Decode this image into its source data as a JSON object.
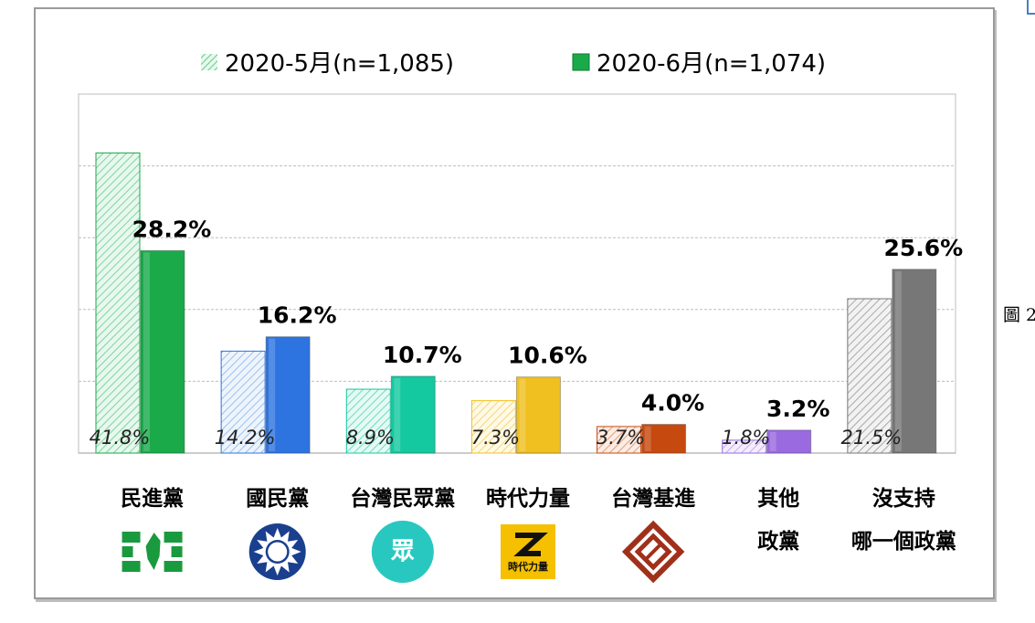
{
  "side_label": "圖 2",
  "colors": {
    "dpp": "#1aaa4a",
    "kmt": "#2e74e0",
    "tpp": "#14c8a0",
    "npp": "#f0c020",
    "tsp": "#c64a10",
    "other": "#9a6ae0",
    "none": "#777777"
  },
  "chart_data": {
    "type": "bar",
    "title": "",
    "xlabel": "",
    "ylabel": "",
    "ylim": [
      0,
      50
    ],
    "grid": true,
    "legend": "top",
    "series": [
      {
        "name": "2020-5月(n=1,085)",
        "style": "hatched",
        "values": [
          41.8,
          14.2,
          8.9,
          7.3,
          3.7,
          1.8,
          21.5
        ],
        "labels": [
          "41.8%",
          "14.2%",
          "8.9%",
          "7.3%",
          "3.7%",
          "1.8%",
          "21.5%"
        ]
      },
      {
        "name": "2020-6月(n=1,074)",
        "style": "solid",
        "values": [
          28.2,
          16.2,
          10.7,
          10.6,
          4.0,
          3.2,
          25.6
        ],
        "labels": [
          "28.2%",
          "16.2%",
          "10.7%",
          "10.6%",
          "4.0%",
          "3.2%",
          "25.6%"
        ]
      }
    ],
    "categories": [
      {
        "lines": [
          "民進黨"
        ],
        "color_key": "dpp",
        "logo": "dpp-logo"
      },
      {
        "lines": [
          "國民黨"
        ],
        "color_key": "kmt",
        "logo": "kmt-logo"
      },
      {
        "lines": [
          "台灣民眾黨"
        ],
        "color_key": "tpp",
        "logo": "tpp-logo",
        "logo_text": "眾"
      },
      {
        "lines": [
          "時代力量"
        ],
        "color_key": "npp",
        "logo": "npp-logo",
        "logo_text": "時代力量"
      },
      {
        "lines": [
          "台灣基進"
        ],
        "color_key": "tsp",
        "logo": "tsp-logo"
      },
      {
        "lines": [
          "其他",
          "政黨"
        ],
        "color_key": "other",
        "logo": ""
      },
      {
        "lines": [
          "沒支持",
          "哪一個政黨"
        ],
        "color_key": "none",
        "logo": ""
      }
    ]
  }
}
